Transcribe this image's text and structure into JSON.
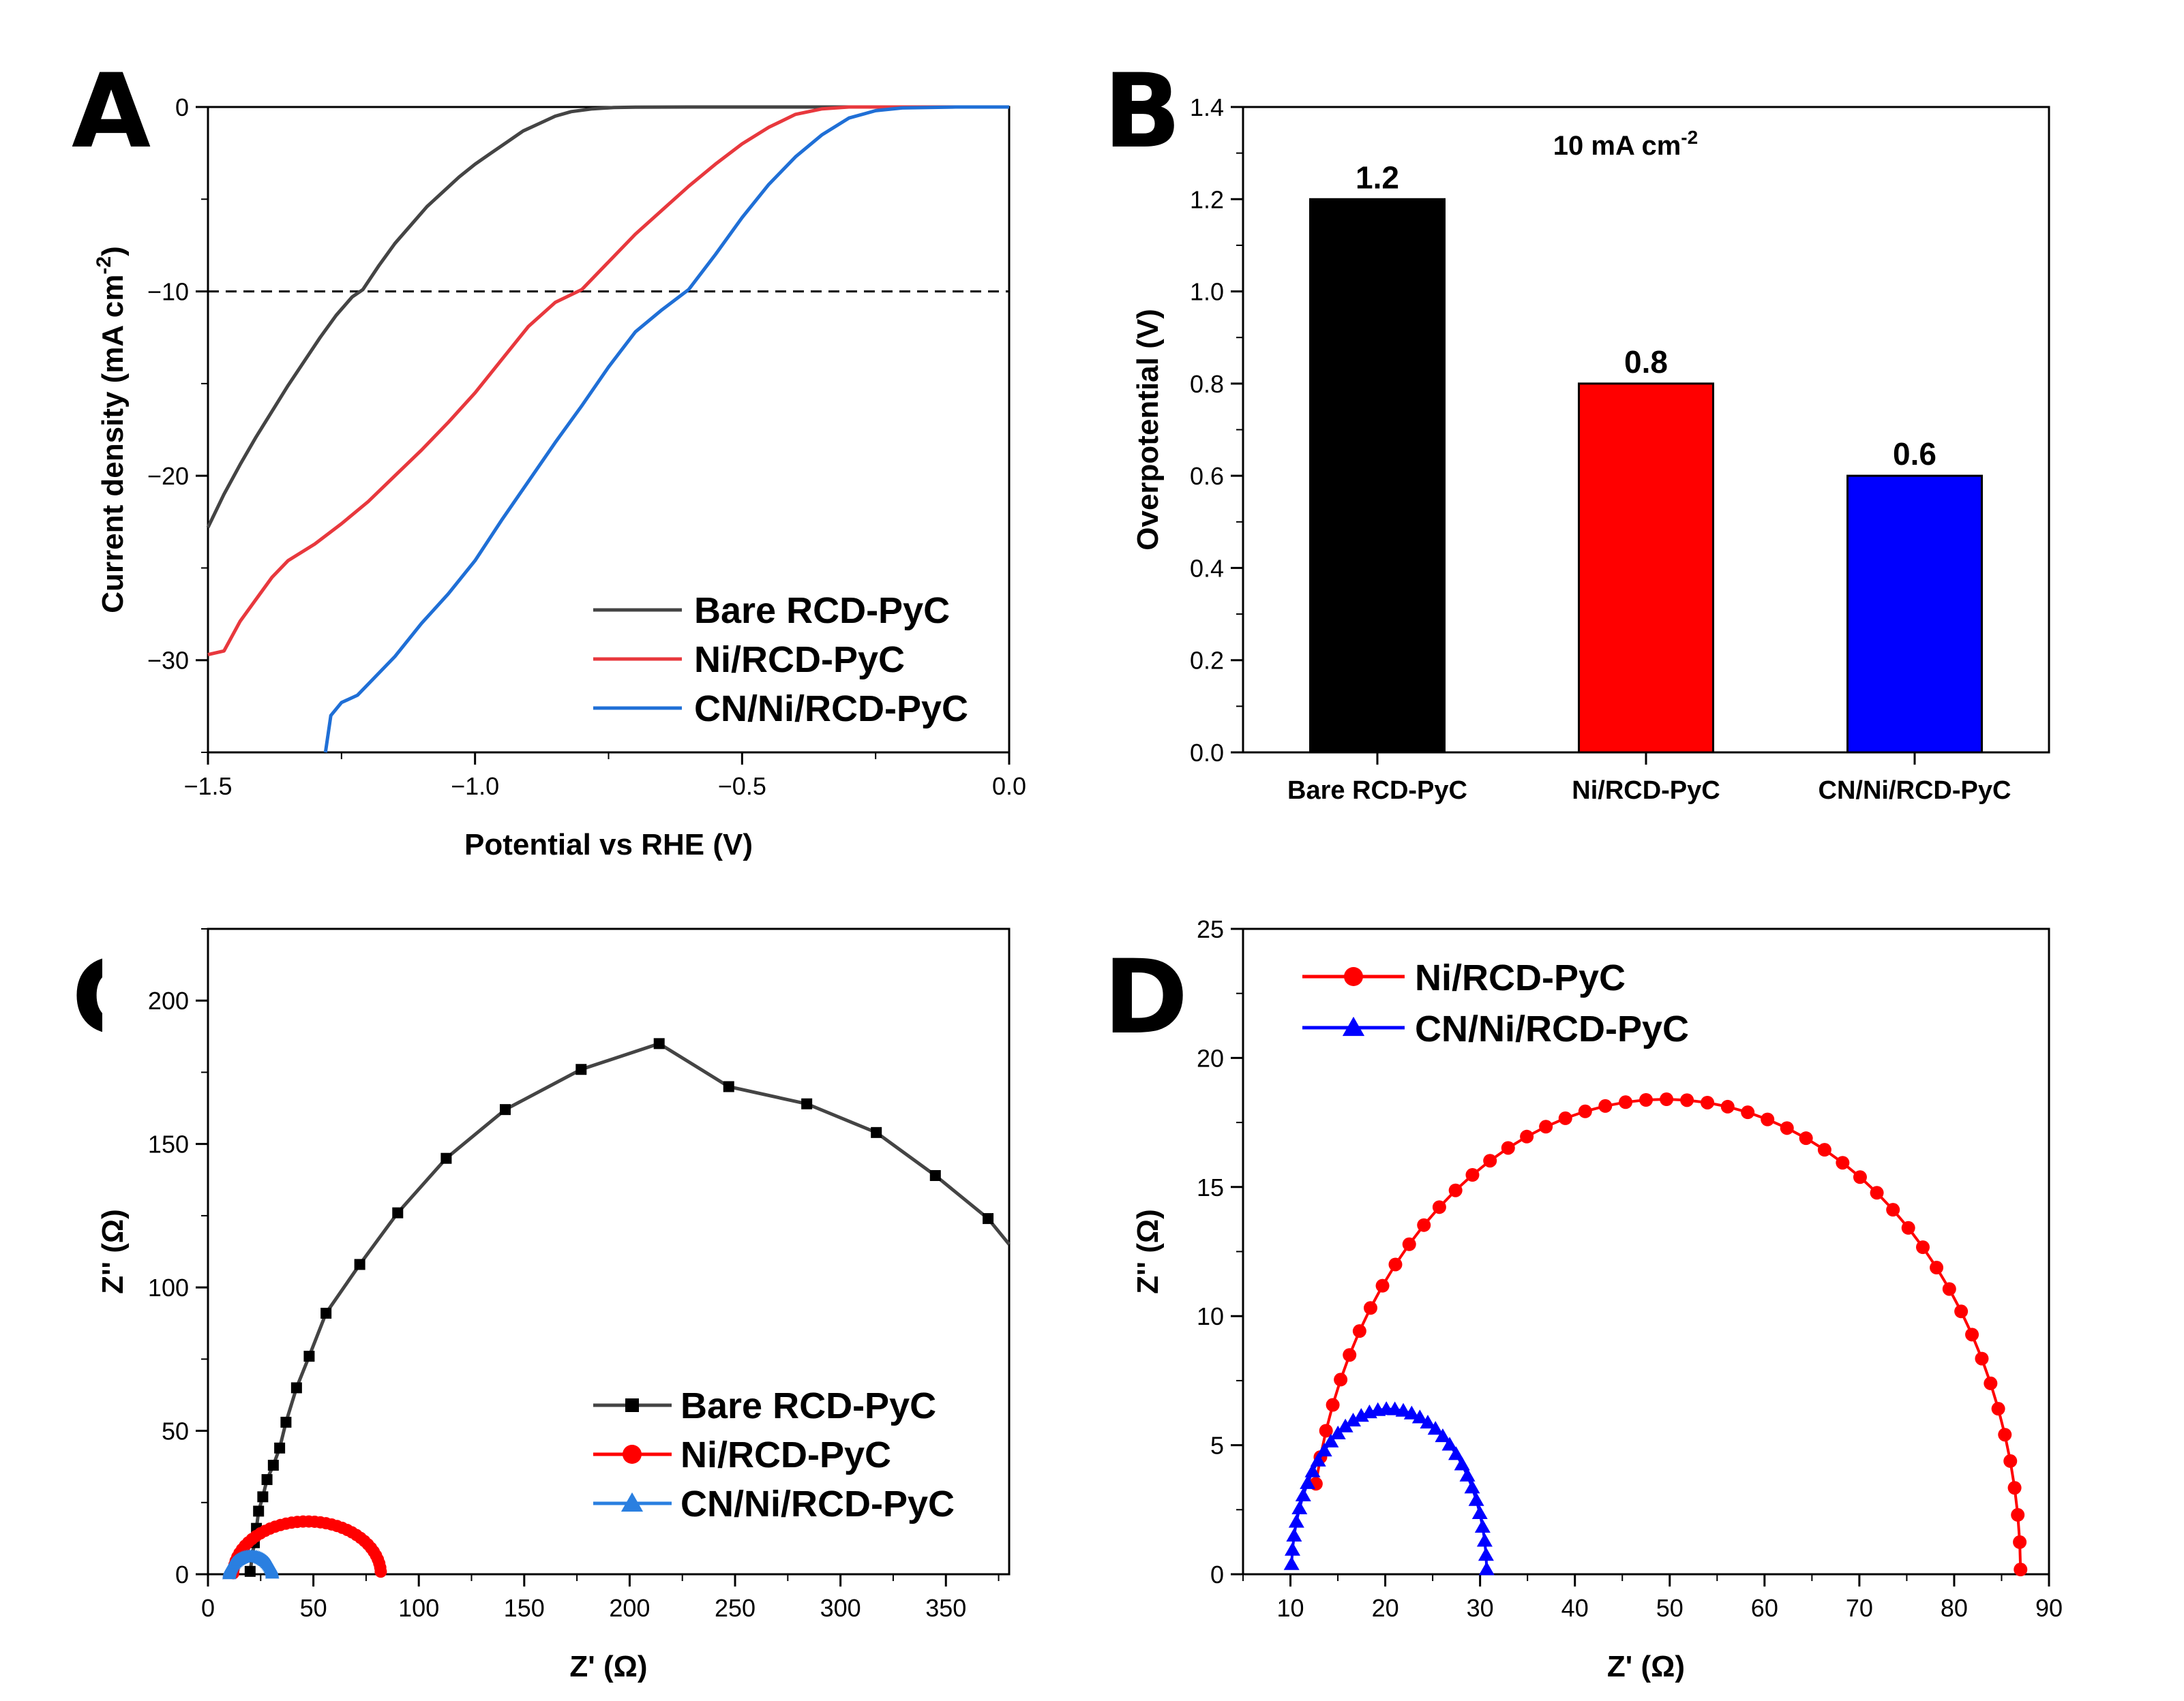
{
  "colors": {
    "black": "#000000",
    "dark_gray": "#444444",
    "red": "#ff0000",
    "lsv_red": "#e8383d",
    "lsv_blue": "#1f6fd6",
    "blue": "#0000ff",
    "light_blue": "#2a7fe0"
  },
  "chart_data": [
    {
      "panel": "A",
      "type": "line",
      "xlabel": "Potential vs RHE (V)",
      "ylabel": "Current density (mA cm",
      "ylabel_sup": "-2",
      "ylabel_close": ")",
      "xlim": [
        -1.5,
        0.0
      ],
      "ylim": [
        -35,
        0
      ],
      "xticks": [
        -1.5,
        -1.0,
        -0.5,
        0.0
      ],
      "xtick_labels": [
        "−1.5",
        "−1.0",
        "−0.5",
        "0.0"
      ],
      "yticks": [
        0,
        -10,
        -20,
        -30
      ],
      "ytick_labels": [
        "0",
        "−10",
        "−20",
        "−30"
      ],
      "reference_line": -10,
      "series": [
        {
          "name": "Bare RCD-PyC",
          "color": "#444444",
          "onset": -0.75,
          "x10": -1.21,
          "x": [
            -1.5,
            -1.47,
            -1.44,
            -1.41,
            -1.38,
            -1.35,
            -1.32,
            -1.29,
            -1.26,
            -1.23,
            -1.21,
            -1.18,
            -1.15,
            -1.12,
            -1.09,
            -1.06,
            -1.03,
            -1.0,
            -0.97,
            -0.94,
            -0.91,
            -0.88,
            -0.85,
            -0.82,
            -0.78,
            -0.74,
            -0.7,
            -0.6,
            -0.5,
            -0.3,
            0.0
          ],
          "y": [
            -22.8,
            -21.0,
            -19.4,
            -17.9,
            -16.5,
            -15.1,
            -13.8,
            -12.5,
            -11.3,
            -10.3,
            -9.9,
            -8.6,
            -7.4,
            -6.4,
            -5.4,
            -4.6,
            -3.8,
            -3.1,
            -2.5,
            -1.9,
            -1.3,
            -0.9,
            -0.5,
            -0.25,
            -0.1,
            -0.03,
            -0.01,
            0,
            0,
            0,
            0
          ]
        },
        {
          "name": "Ni/RCD-PyC",
          "color": "#e8383d",
          "onset": -0.35,
          "x10": -0.8,
          "x": [
            -1.5,
            -1.47,
            -1.44,
            -1.41,
            -1.38,
            -1.35,
            -1.3,
            -1.25,
            -1.2,
            -1.15,
            -1.1,
            -1.05,
            -1.0,
            -0.95,
            -0.9,
            -0.85,
            -0.8,
            -0.75,
            -0.7,
            -0.65,
            -0.6,
            -0.55,
            -0.5,
            -0.45,
            -0.4,
            -0.35,
            -0.3,
            -0.2,
            0.0
          ],
          "y": [
            -29.7,
            -29.5,
            -27.9,
            -26.7,
            -25.5,
            -24.6,
            -23.7,
            -22.6,
            -21.4,
            -20.0,
            -18.6,
            -17.1,
            -15.5,
            -13.7,
            -11.9,
            -10.6,
            -9.9,
            -8.4,
            -6.9,
            -5.6,
            -4.3,
            -3.1,
            -2.0,
            -1.1,
            -0.4,
            -0.1,
            0,
            0,
            0
          ]
        },
        {
          "name": "CN/Ni/RCD-PyC",
          "color": "#1f6fd6",
          "onset": -0.25,
          "x10": -0.6,
          "x": [
            -1.28,
            -1.27,
            -1.25,
            -1.22,
            -1.2,
            -1.15,
            -1.1,
            -1.05,
            -1.0,
            -0.95,
            -0.9,
            -0.85,
            -0.8,
            -0.75,
            -0.7,
            -0.65,
            -0.6,
            -0.55,
            -0.5,
            -0.45,
            -0.4,
            -0.35,
            -0.3,
            -0.25,
            -0.2,
            -0.1,
            0.0
          ],
          "y": [
            -35,
            -33.0,
            -32.3,
            -31.9,
            -31.3,
            -29.8,
            -28.0,
            -26.4,
            -24.6,
            -22.4,
            -20.3,
            -18.2,
            -16.2,
            -14.1,
            -12.2,
            -11.0,
            -9.9,
            -8.0,
            -6.0,
            -4.2,
            -2.7,
            -1.5,
            -0.6,
            -0.2,
            -0.05,
            0,
            0
          ]
        }
      ]
    },
    {
      "panel": "B",
      "type": "bar",
      "title": "10 mA cm",
      "title_sup": "-2",
      "ylabel": "Overpotential (V)",
      "ylim": [
        0.0,
        1.4
      ],
      "yticks": [
        0.0,
        0.2,
        0.4,
        0.6,
        0.8,
        1.0,
        1.2,
        1.4
      ],
      "ytick_labels": [
        "0.0",
        "0.2",
        "0.4",
        "0.6",
        "0.8",
        "1.0",
        "1.2",
        "1.4"
      ],
      "categories": [
        "Bare RCD-PyC",
        "Ni/RCD-PyC",
        "CN/Ni/RCD-PyC"
      ],
      "values": [
        1.2,
        0.8,
        0.6
      ],
      "value_labels": [
        "1.2",
        "0.8",
        "0.6"
      ],
      "bar_colors": [
        "#000000",
        "#ff0000",
        "#0000ff"
      ]
    },
    {
      "panel": "C",
      "type": "scatter",
      "xlabel": "Z' (Ω)",
      "ylabel": "Z'' (Ω)",
      "xlim": [
        0,
        380
      ],
      "ylim": [
        0,
        225
      ],
      "xticks": [
        0,
        50,
        100,
        150,
        200,
        250,
        300,
        350
      ],
      "xtick_labels": [
        "0",
        "50",
        "100",
        "150",
        "200",
        "250",
        "300",
        "350"
      ],
      "yticks": [
        0,
        50,
        100,
        150,
        200
      ],
      "ytick_labels": [
        "0",
        "50",
        "100",
        "150",
        "200"
      ],
      "series": [
        {
          "name": "Bare RCD-PyC",
          "color": "#444444",
          "marker": "square",
          "x": [
            20,
            21,
            22,
            23,
            24,
            26,
            28,
            31,
            34,
            37,
            42,
            48,
            56,
            72,
            90,
            113,
            141,
            177,
            214,
            247,
            284,
            317,
            345,
            370,
            380
          ],
          "y": [
            1,
            6,
            11,
            16,
            22,
            27,
            33,
            38,
            44,
            53,
            65,
            76,
            91,
            108,
            126,
            145,
            162,
            176,
            185,
            170,
            164,
            154,
            139,
            124,
            115
          ]
        },
        {
          "name": "Ni/RCD-PyC",
          "color": "#ff0000",
          "marker": "circle",
          "cx": 47,
          "rx": 35,
          "ry": 18.4,
          "x0": 12,
          "x1": 82
        },
        {
          "name": "CN/Ni/RCD-PyC",
          "color": "#2a7fe0",
          "marker": "triangle",
          "cx": 20.3,
          "rx": 10.2,
          "ry": 6.3,
          "x0": 10.1,
          "x1": 30.5
        }
      ]
    },
    {
      "panel": "D",
      "type": "scatter",
      "xlabel": "Z' (Ω)",
      "ylabel": "Z'' (Ω)",
      "xlim": [
        5,
        90
      ],
      "ylim": [
        0,
        25
      ],
      "xticks": [
        10,
        20,
        30,
        40,
        50,
        60,
        70,
        80,
        90
      ],
      "xtick_labels": [
        "10",
        "20",
        "30",
        "40",
        "50",
        "60",
        "70",
        "80",
        "90"
      ],
      "yticks": [
        0,
        5,
        10,
        15,
        20,
        25
      ],
      "ytick_labels": [
        "0",
        "5",
        "10",
        "15",
        "20",
        "25"
      ],
      "series": [
        {
          "name": "Ni/RCD-PyC",
          "color": "#ff0000",
          "marker": "circle",
          "cx": 49.5,
          "rx": 37.5,
          "ry": 18.4,
          "t0": 0.01,
          "t1": 2.95,
          "n": 52
        },
        {
          "name": "CN/Ni/RCD-PyC",
          "color": "#0000ff",
          "marker": "triangle",
          "cx": 20.4,
          "rx": 10.3,
          "ry": 6.4,
          "t0": 0.03,
          "t1": 3.08,
          "n": 36
        }
      ]
    }
  ],
  "panel_letters": [
    "A",
    "B",
    "C",
    "D"
  ]
}
